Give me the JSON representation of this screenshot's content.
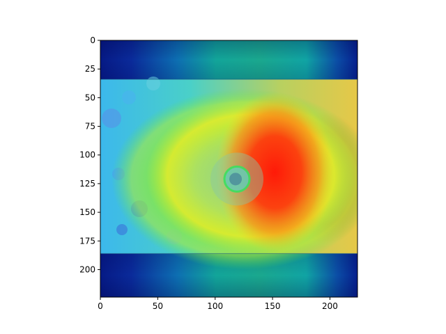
{
  "chart_data": {
    "type": "heatmap",
    "title": "",
    "xlabel": "",
    "ylabel": "",
    "xlim": [
      0,
      224
    ],
    "ylim": [
      224,
      0
    ],
    "x_ticks": [
      0,
      50,
      100,
      150,
      200
    ],
    "y_ticks": [
      0,
      25,
      50,
      75,
      100,
      125,
      150,
      175,
      200
    ],
    "image_rows": [
      34,
      186
    ],
    "eye_center": [
      119,
      121
    ],
    "hotspot_center": [
      152,
      115
    ],
    "colormap": "jet",
    "colors": {
      "band_dark": "#06208f",
      "band_mid": "#0a9a9e",
      "background_cyan": "#34c8e6",
      "ring_green": "#5ee64a",
      "ring_yellow": "#e8ec2a",
      "hot_red": "#ff2a0a",
      "hot_orange": "#ff7a12"
    },
    "grid": false
  }
}
